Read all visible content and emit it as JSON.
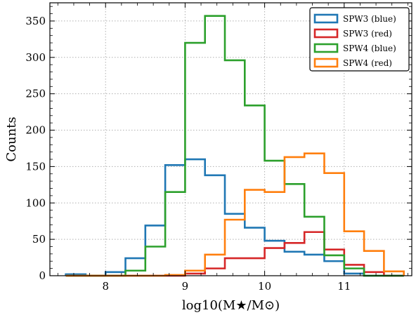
{
  "chart_data": {
    "type": "bar",
    "subtype": "step-histogram",
    "xlabel": "log10(M★/M⊙)",
    "ylabel": "Counts",
    "xlim": [
      7.3,
      11.85
    ],
    "ylim": [
      0,
      375
    ],
    "x_ticks": [
      8,
      9,
      10,
      11
    ],
    "y_ticks": [
      0,
      50,
      100,
      150,
      200,
      250,
      300,
      350
    ],
    "grid": true,
    "legend_position": "top-right",
    "bin_edges": [
      7.5,
      7.75,
      8.0,
      8.25,
      8.5,
      8.75,
      9.0,
      9.25,
      9.5,
      9.75,
      10.0,
      10.25,
      10.5,
      10.75,
      11.0,
      11.25,
      11.5,
      11.75
    ],
    "series": [
      {
        "name": "SPW3 (blue)",
        "color": "#1f77b4",
        "values": [
          2,
          0,
          5,
          24,
          69,
          152,
          160,
          138,
          85,
          66,
          48,
          33,
          29,
          20,
          3,
          0,
          0
        ]
      },
      {
        "name": "SPW3 (red)",
        "color": "#d62728",
        "values": [
          0,
          0,
          0,
          0,
          0,
          0,
          3,
          10,
          24,
          24,
          38,
          45,
          60,
          36,
          15,
          5,
          0
        ]
      },
      {
        "name": "SPW4 (blue)",
        "color": "#2ca02c",
        "values": [
          0,
          0,
          0,
          7,
          40,
          115,
          320,
          357,
          296,
          234,
          158,
          126,
          81,
          28,
          10,
          0,
          0
        ]
      },
      {
        "name": "SPW4 (red)",
        "color": "#ff7f0e",
        "values": [
          0,
          0,
          0,
          0,
          0,
          1,
          7,
          29,
          77,
          118,
          115,
          163,
          168,
          141,
          61,
          34,
          6
        ]
      }
    ]
  }
}
